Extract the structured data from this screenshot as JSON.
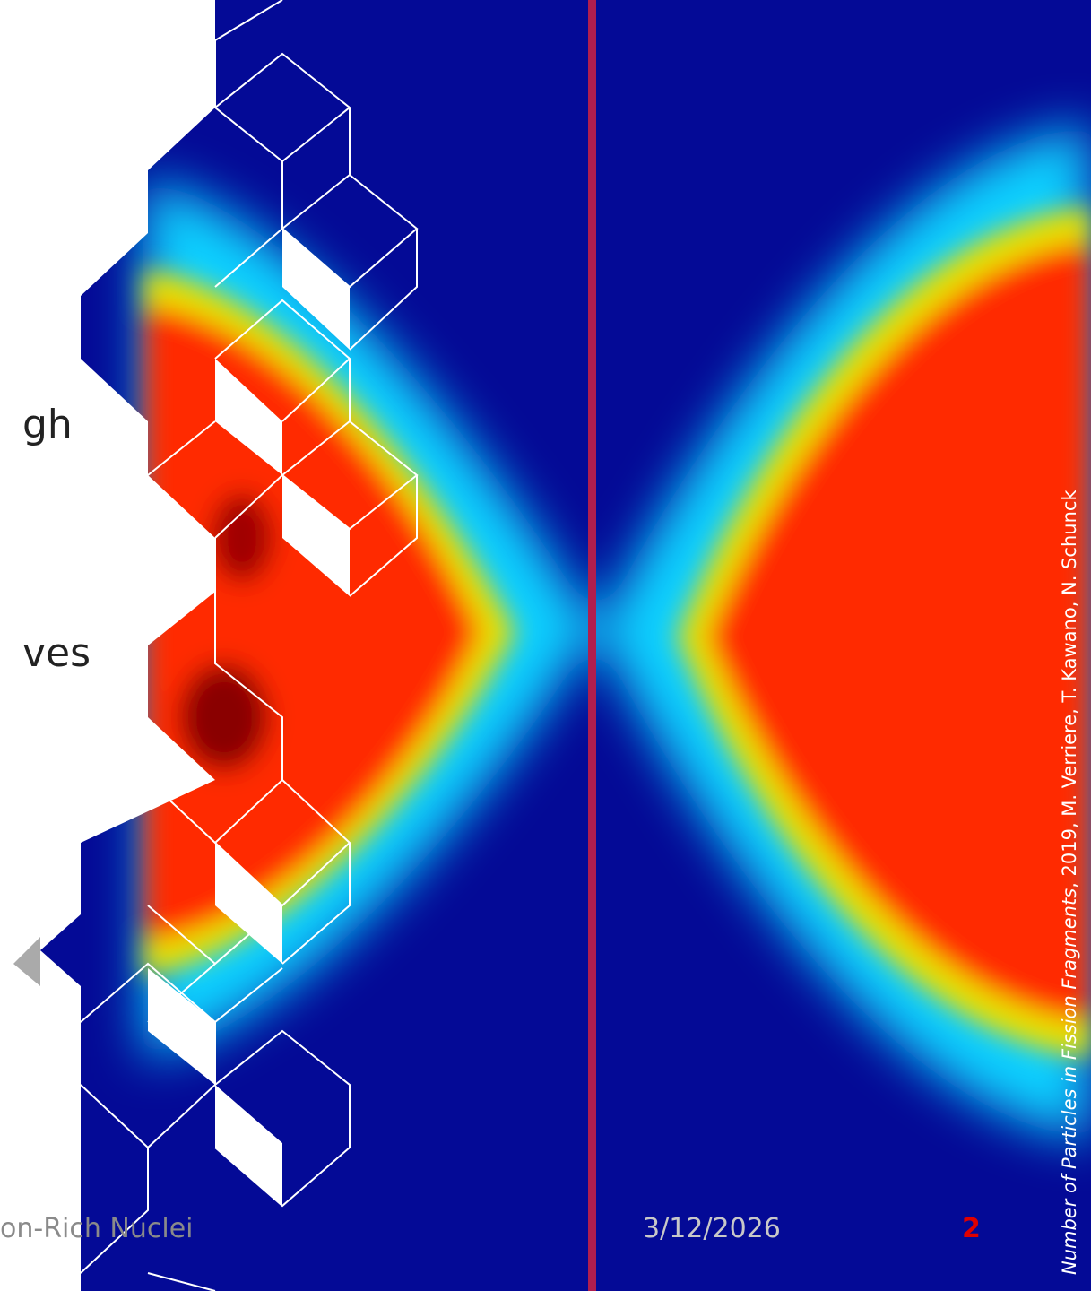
{
  "slide": {
    "body_lines": [
      "gh",
      "ves"
    ],
    "footer": {
      "title": "on-Rich Nuclei",
      "date": "3/12/2026",
      "page_number": "2"
    },
    "credit": {
      "title": "Number of Particles in Fission Fragments",
      "details": ", 2019, M. Verriere, T. Kawano, N. Schunck"
    }
  }
}
